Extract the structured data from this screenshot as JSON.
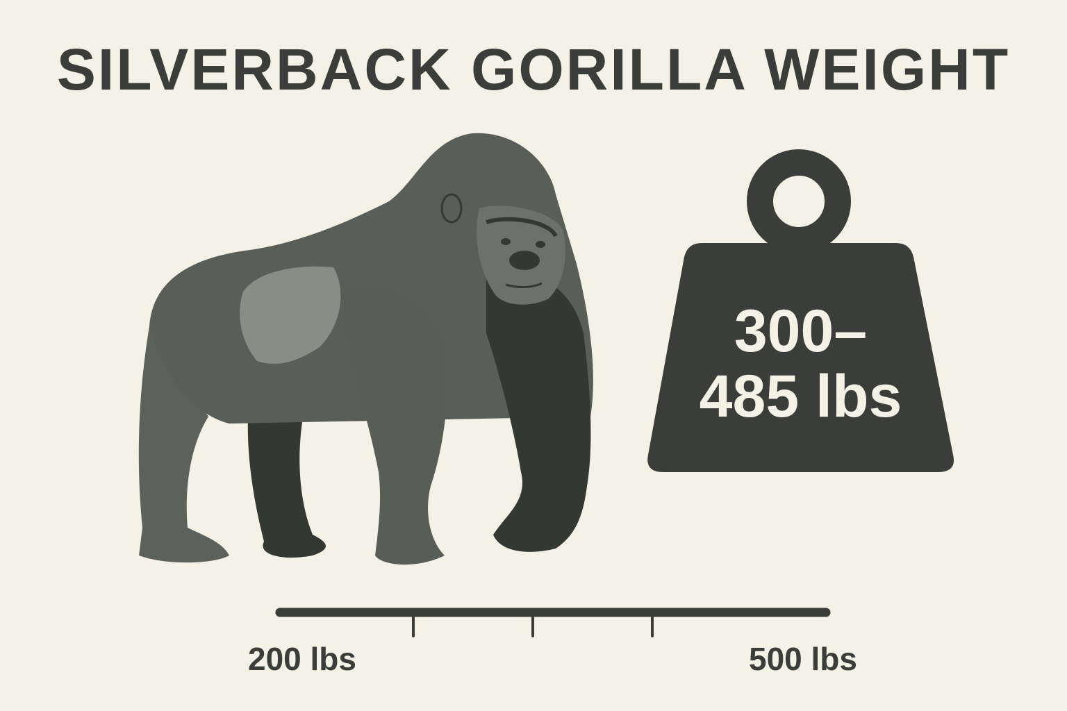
{
  "title": "SILVERBACK GORILLA WEIGHT",
  "weight": {
    "line1": "300–",
    "line2": "485 lbs",
    "icon": "weight-icon"
  },
  "scale": {
    "min_label": "200 lbs",
    "max_label": "500 lbs",
    "min": 200,
    "max": 500,
    "tick_count": 3
  },
  "illustration": "gorilla-icon",
  "colors": {
    "background": "#f4f1e7",
    "dark": "#3a3d39",
    "gorilla_mid": "#5a5e58",
    "gorilla_dark": "#343833",
    "silver": "#8a8d86"
  }
}
